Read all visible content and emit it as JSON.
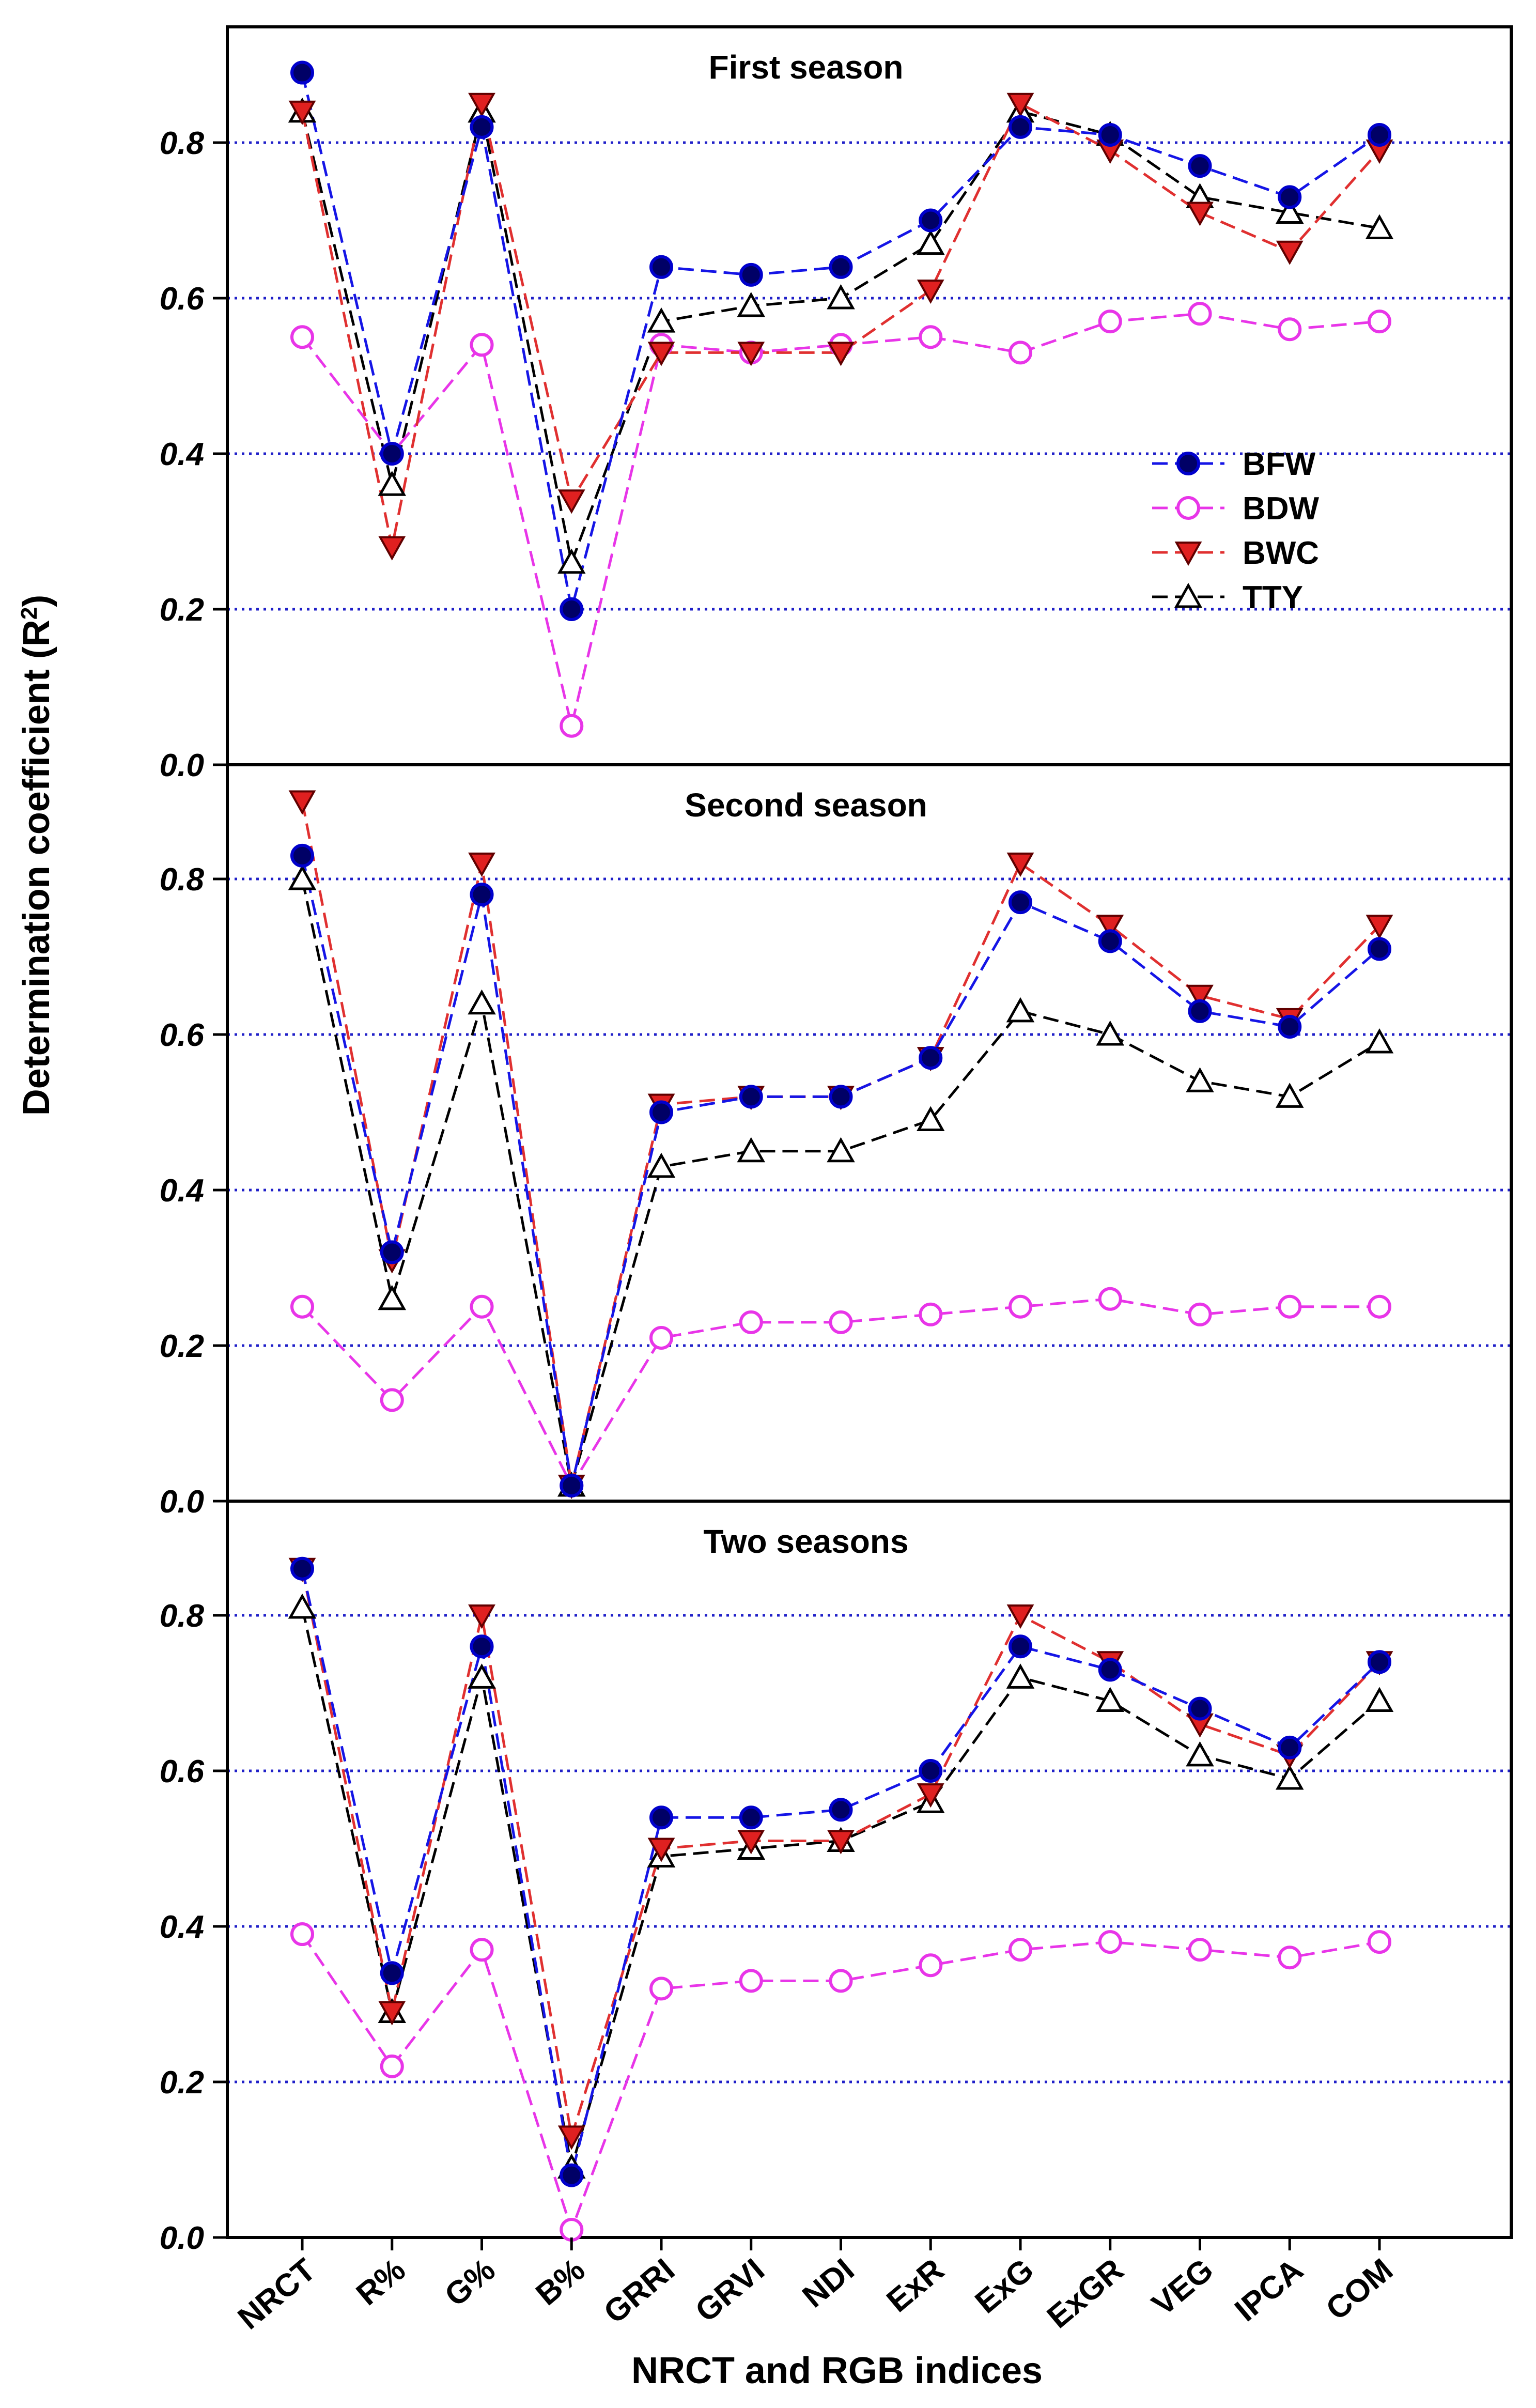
{
  "chart_data": {
    "type": "line",
    "ylabel": "Determination coefficient (R",
    "ylabel_sup": "2",
    "ylabel_close": ")",
    "xlabel": "NRCT and RGB indices",
    "categories": [
      "NRCT",
      "R%",
      "G%",
      "B%",
      "GRRI",
      "GRVI",
      "NDI",
      "ExR",
      "ExG",
      "ExGR",
      "VEG",
      "IPCA",
      "COM"
    ],
    "ylim": [
      0,
      0.95
    ],
    "yticks": [
      "0.0",
      "0.2",
      "0.4",
      "0.6",
      "0.8"
    ],
    "grid_values": [
      0.2,
      0.4,
      0.6,
      0.8
    ],
    "legend_position": "right, inside first panel",
    "series_styles": [
      {
        "name": "BFW",
        "marker": "filled-circle",
        "line_color": "#1515e6",
        "marker_fill": "#000066",
        "marker_stroke": "#0000cc"
      },
      {
        "name": "BDW",
        "marker": "open-circle",
        "line_color": "#e835e8",
        "marker_fill": "#ffffff",
        "marker_stroke": "#e835e8"
      },
      {
        "name": "BWC",
        "marker": "filled-triangle-down",
        "line_color": "#e03030",
        "marker_fill": "#e02020",
        "marker_stroke": "#600000"
      },
      {
        "name": "TTY",
        "marker": "open-triangle-up",
        "line_color": "#000000",
        "marker_fill": "#ffffff",
        "marker_stroke": "#000000"
      }
    ],
    "panels": [
      {
        "title": "First season",
        "series": [
          {
            "name": "BFW",
            "values": [
              0.89,
              0.4,
              0.82,
              0.2,
              0.64,
              0.63,
              0.64,
              0.7,
              0.82,
              0.81,
              0.77,
              0.73,
              0.81
            ]
          },
          {
            "name": "BDW",
            "values": [
              0.55,
              0.4,
              0.54,
              0.05,
              0.54,
              0.53,
              0.54,
              0.55,
              0.53,
              0.57,
              0.58,
              0.56,
              0.57
            ]
          },
          {
            "name": "BWC",
            "values": [
              0.84,
              0.28,
              0.85,
              0.34,
              0.53,
              0.53,
              0.53,
              0.61,
              0.85,
              0.79,
              0.71,
              0.66,
              0.79
            ]
          },
          {
            "name": "TTY",
            "values": [
              0.84,
              0.36,
              0.84,
              0.26,
              0.57,
              0.59,
              0.6,
              0.67,
              0.84,
              0.81,
              0.73,
              0.71,
              0.69
            ]
          }
        ]
      },
      {
        "title": "Second season",
        "series": [
          {
            "name": "BFW",
            "values": [
              0.83,
              0.32,
              0.78,
              0.02,
              0.5,
              0.52,
              0.52,
              0.57,
              0.77,
              0.72,
              0.63,
              0.61,
              0.71
            ]
          },
          {
            "name": "BDW",
            "values": [
              0.25,
              0.13,
              0.25,
              0.02,
              0.21,
              0.23,
              0.23,
              0.24,
              0.25,
              0.26,
              0.24,
              0.25,
              0.25
            ]
          },
          {
            "name": "BWC",
            "values": [
              0.9,
              0.31,
              0.82,
              0.02,
              0.51,
              0.52,
              0.52,
              0.57,
              0.82,
              0.74,
              0.65,
              0.62,
              0.74
            ]
          },
          {
            "name": "TTY",
            "values": [
              0.8,
              0.26,
              0.64,
              0.02,
              0.43,
              0.45,
              0.45,
              0.49,
              0.63,
              0.6,
              0.54,
              0.52,
              0.59
            ]
          }
        ]
      },
      {
        "title": "Two seasons",
        "series": [
          {
            "name": "BFW",
            "values": [
              0.86,
              0.34,
              0.76,
              0.08,
              0.54,
              0.54,
              0.55,
              0.6,
              0.76,
              0.73,
              0.68,
              0.63,
              0.74
            ]
          },
          {
            "name": "BDW",
            "values": [
              0.39,
              0.22,
              0.37,
              0.01,
              0.32,
              0.33,
              0.33,
              0.35,
              0.37,
              0.38,
              0.37,
              0.36,
              0.38
            ]
          },
          {
            "name": "BWC",
            "values": [
              0.86,
              0.29,
              0.8,
              0.13,
              0.5,
              0.51,
              0.51,
              0.57,
              0.8,
              0.74,
              0.66,
              0.62,
              0.74
            ]
          },
          {
            "name": "TTY",
            "values": [
              0.81,
              0.29,
              0.72,
              0.09,
              0.49,
              0.5,
              0.51,
              0.56,
              0.72,
              0.69,
              0.62,
              0.59,
              0.69
            ]
          }
        ]
      }
    ]
  }
}
